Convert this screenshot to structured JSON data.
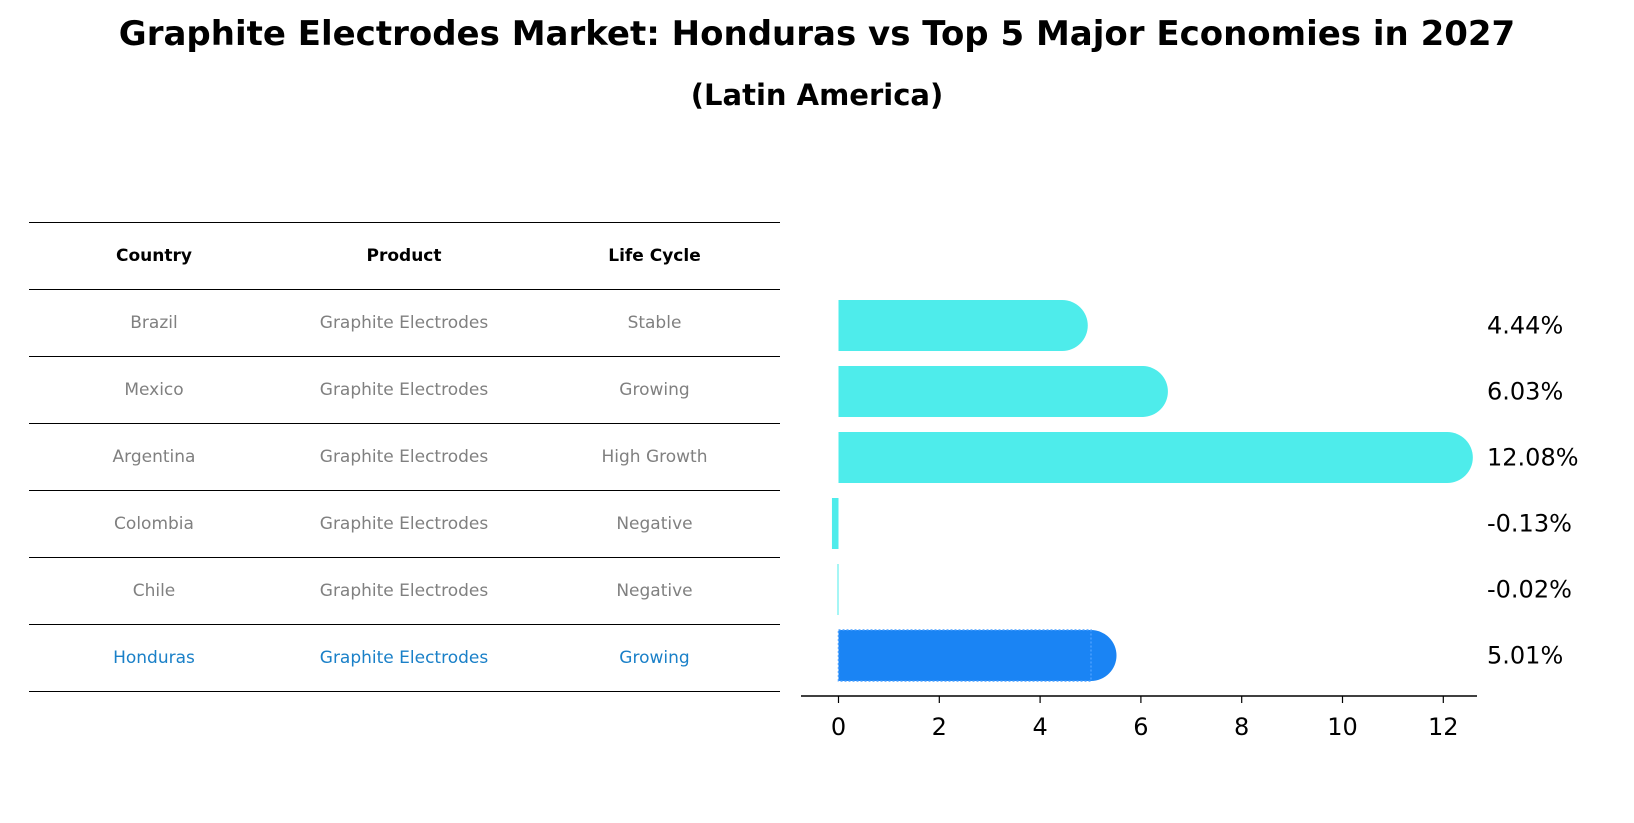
{
  "header": {
    "title": "Graphite Electrodes Market: Honduras vs Top 5 Major Economies in 2027",
    "subtitle": "(Latin America)"
  },
  "table": {
    "columns": [
      "Country",
      "Product",
      "Life Cycle"
    ],
    "rows": [
      {
        "country": "Brazil",
        "product": "Graphite Electrodes",
        "life_cycle": "Stable"
      },
      {
        "country": "Mexico",
        "product": "Graphite Electrodes",
        "life_cycle": "Growing"
      },
      {
        "country": "Argentina",
        "product": "Graphite Electrodes",
        "life_cycle": "High Growth"
      },
      {
        "country": "Colombia",
        "product": "Graphite Electrodes",
        "life_cycle": "Negative"
      },
      {
        "country": "Chile",
        "product": "Graphite Electrodes",
        "life_cycle": "Negative"
      },
      {
        "country": "Honduras",
        "product": "Graphite Electrodes",
        "life_cycle": "Growing"
      }
    ],
    "highlight_row": "Honduras",
    "highlight_color": "#1a80c8"
  },
  "chart_data": {
    "type": "bar",
    "orientation": "horizontal",
    "categories": [
      "Brazil",
      "Mexico",
      "Argentina",
      "Colombia",
      "Chile",
      "Honduras"
    ],
    "values": [
      4.44,
      6.03,
      12.08,
      -0.13,
      -0.02,
      5.01
    ],
    "value_labels": [
      "4.44%",
      "6.03%",
      "12.08%",
      "-0.13%",
      "-0.02%",
      "5.01%"
    ],
    "x_ticks": [
      0,
      2,
      4,
      6,
      8,
      10,
      12
    ],
    "xlim": [
      -0.75,
      12.7
    ],
    "bar_color": "#4eeceb",
    "highlight_color": "#1a84f4",
    "highlight_category": "Honduras",
    "grid": false
  }
}
